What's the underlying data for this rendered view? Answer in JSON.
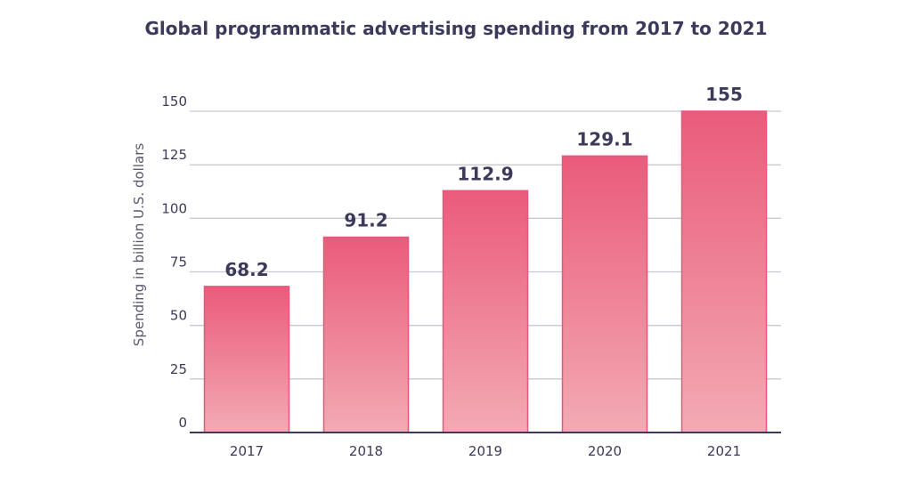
{
  "chart_data": {
    "type": "bar",
    "title": "Global programmatic advertising spending from 2017 to 2021",
    "xlabel": "",
    "ylabel": "Spending in billion U.S. dollars",
    "categories": [
      "2017",
      "2018",
      "2019",
      "2020",
      "2021"
    ],
    "values": [
      68.2,
      91.2,
      112.9,
      129.1,
      155
    ],
    "data_labels": [
      "68.2",
      "91.2",
      "112.9",
      "129.1",
      "155"
    ],
    "ylim": [
      0,
      150
    ],
    "yticks": [
      "0",
      "25",
      "50",
      "75",
      "100",
      "125",
      "150"
    ],
    "grid": true,
    "legend": "none",
    "colors": {
      "bar_top": "#ea5b7b",
      "bar_bottom": "#f3aab4",
      "bar_border": "#e8587a",
      "text": "#3b3a5a",
      "grid": "#c9c8d2",
      "axis": "#3b3a5a"
    }
  }
}
